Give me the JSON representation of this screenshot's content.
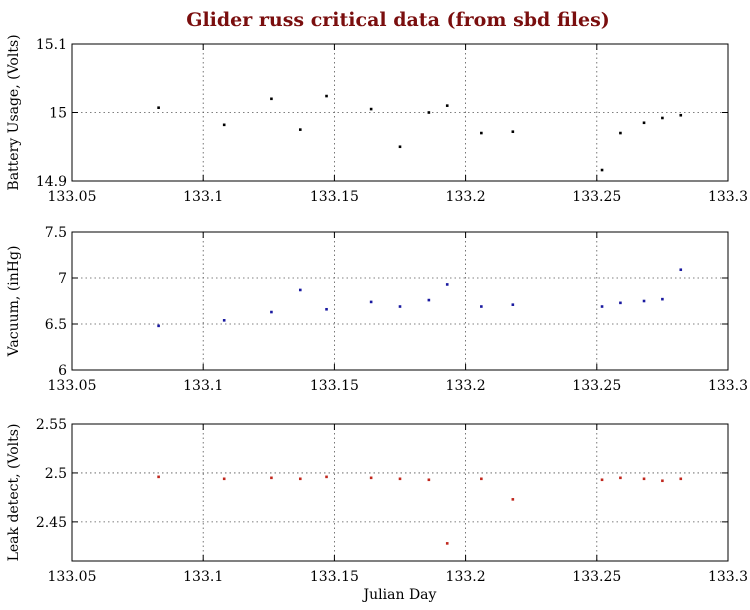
{
  "title": "Glider russ critical data (from sbd files)",
  "chart_data": [
    {
      "type": "scatter",
      "ylabel": "Battery Usage, (Volts)",
      "xlabel": "",
      "xlim": [
        133.05,
        133.3
      ],
      "ylim": [
        14.9,
        15.1
      ],
      "xticks": [
        "133.05",
        "133.1",
        "133.15",
        "133.2",
        "133.25",
        "133.3"
      ],
      "yticks": [
        "14.9",
        "15",
        "15.1"
      ],
      "grid": true,
      "color": "#000000",
      "x": [
        133.083,
        133.108,
        133.126,
        133.137,
        133.147,
        133.164,
        133.175,
        133.186,
        133.193,
        133.206,
        133.218,
        133.252,
        133.259,
        133.268,
        133.275,
        133.282
      ],
      "y": [
        15.007,
        14.982,
        15.02,
        14.975,
        15.024,
        15.005,
        14.95,
        15.0,
        15.01,
        14.97,
        14.972,
        14.916,
        14.97,
        14.985,
        14.992,
        14.996
      ]
    },
    {
      "type": "scatter",
      "ylabel": "Vacuum, (inHg)",
      "xlabel": "",
      "xlim": [
        133.05,
        133.3
      ],
      "ylim": [
        6,
        7.5
      ],
      "xticks": [
        "133.05",
        "133.1",
        "133.15",
        "133.2",
        "133.25",
        "133.3"
      ],
      "yticks": [
        "6",
        "6.5",
        "7",
        "7.5"
      ],
      "grid": true,
      "color": "#1a1aa0",
      "x": [
        133.083,
        133.108,
        133.126,
        133.137,
        133.147,
        133.164,
        133.175,
        133.186,
        133.193,
        133.206,
        133.218,
        133.252,
        133.259,
        133.268,
        133.275,
        133.282
      ],
      "y": [
        6.48,
        6.54,
        6.63,
        6.87,
        6.66,
        6.74,
        6.69,
        6.76,
        6.93,
        6.69,
        6.71,
        6.69,
        6.73,
        6.75,
        6.77,
        7.09
      ]
    },
    {
      "type": "scatter",
      "ylabel": "Leak detect, (Volts)",
      "xlabel": "Julian Day",
      "xlim": [
        133.05,
        133.3
      ],
      "ylim": [
        2.41,
        2.55
      ],
      "xticks": [
        "133.05",
        "133.1",
        "133.15",
        "133.2",
        "133.25",
        "133.3"
      ],
      "yticks": [
        "2.45",
        "2.5",
        "2.55"
      ],
      "grid": true,
      "color": "#c0281e",
      "x": [
        133.083,
        133.108,
        133.126,
        133.137,
        133.147,
        133.164,
        133.175,
        133.186,
        133.193,
        133.206,
        133.218,
        133.252,
        133.259,
        133.268,
        133.275,
        133.282
      ],
      "y": [
        2.496,
        2.494,
        2.495,
        2.494,
        2.496,
        2.495,
        2.494,
        2.493,
        2.428,
        2.494,
        2.473,
        2.493,
        2.495,
        2.494,
        2.492,
        2.494
      ]
    }
  ]
}
